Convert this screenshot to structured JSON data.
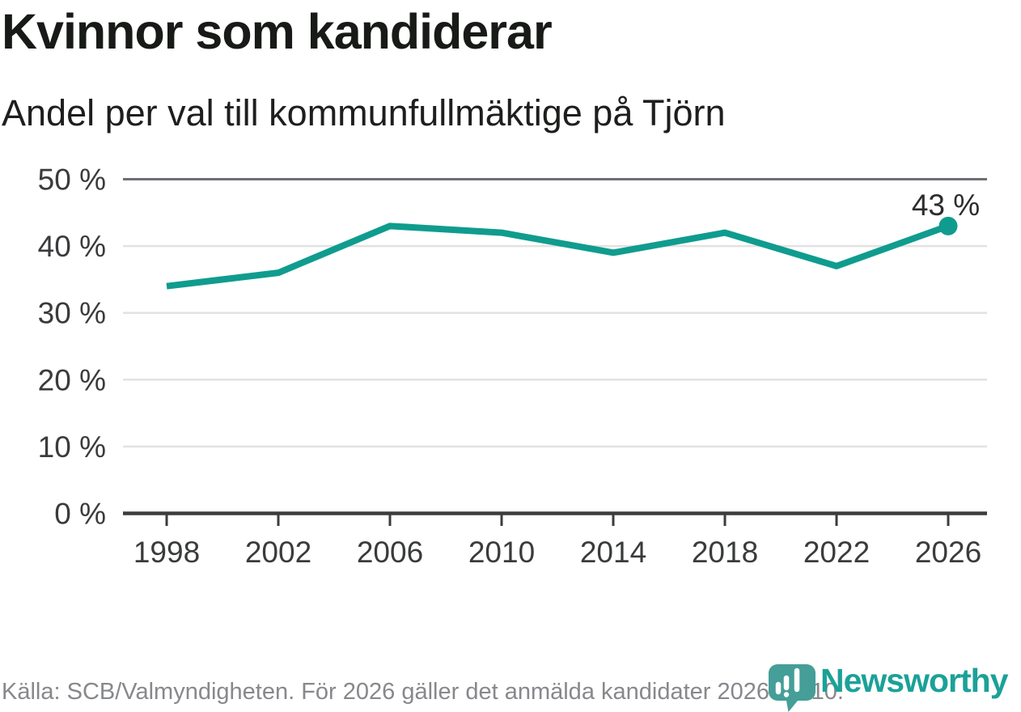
{
  "header": {
    "title": "Kvinnor som kandiderar",
    "subtitle": "Andel per val till kommunfullmäktige på Tjörn"
  },
  "chart_data": {
    "type": "line",
    "title": "Kvinnor som kandiderar",
    "subtitle": "Andel per val till kommunfullmäktige på Tjörn",
    "categories": [
      "1998",
      "2002",
      "2006",
      "2010",
      "2014",
      "2018",
      "2022",
      "2026"
    ],
    "series": [
      {
        "name": "Kvinnor som kandiderar",
        "values": [
          34,
          36,
          43,
          42,
          39,
          42,
          37,
          43
        ]
      }
    ],
    "unit": "%",
    "ylim": [
      0,
      50
    ],
    "yticks": [
      0,
      10,
      20,
      30,
      40,
      50
    ],
    "ytick_labels": [
      "0 %",
      "10 %",
      "20 %",
      "30 %",
      "40 %",
      "50 %"
    ],
    "grid": "horizontal",
    "legend_position": "none",
    "last_point_label": "43 %",
    "last_point_marker": true
  },
  "footer": {
    "source": "Källa: SCB/Valmyndigheten. För 2026 gäller det anmälda kandidater 2026-04-10.",
    "logo_text": "Newsworthy"
  },
  "icons": {
    "logo_icon": "chart-speech-bubble-icon"
  },
  "colors": {
    "accent_line": "#0f9c8e",
    "grid_light": "#e2e2e2",
    "grid_top": "#6e6f74",
    "axis": "#3b3c3d",
    "text_dark": "#1d1f1d",
    "footer_text": "#87888c",
    "logo_bubble": "#459e98",
    "logo_text": "#1ba198"
  }
}
